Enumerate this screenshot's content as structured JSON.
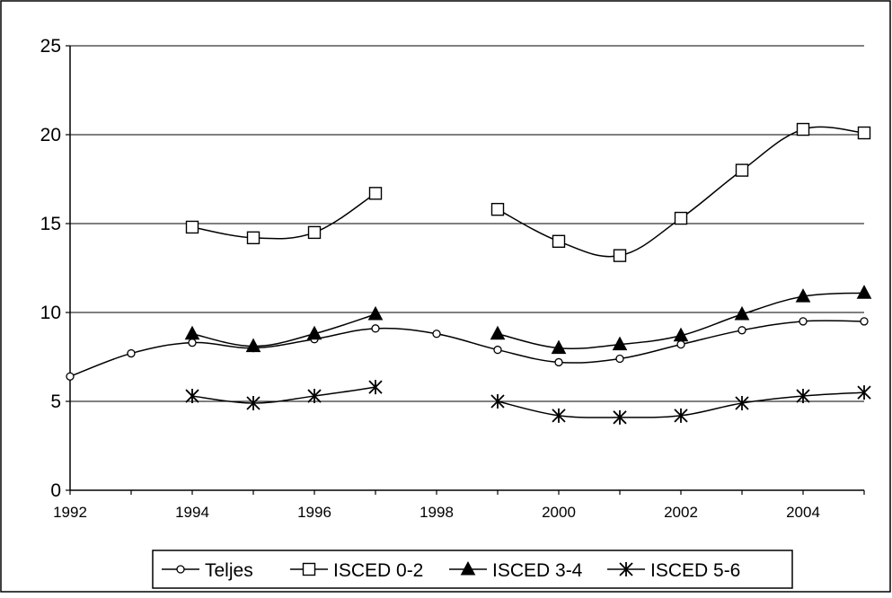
{
  "chart_data": {
    "type": "line",
    "title": "",
    "xlabel": "",
    "ylabel": "",
    "xlim": [
      1992,
      2005
    ],
    "ylim": [
      0,
      25
    ],
    "y_ticks": [
      "0",
      "5",
      "10",
      "15",
      "20",
      "25"
    ],
    "x_ticks": [
      "1992",
      "1994",
      "1996",
      "1998",
      "2000",
      "2002",
      "2004"
    ],
    "grid": "horizontal",
    "legend_position": "bottom",
    "colors": {
      "line": "#000000",
      "background": "#ffffff",
      "grid": "#000000",
      "border": "#000000"
    },
    "x": [
      1992,
      1993,
      1994,
      1995,
      1996,
      1997,
      1998,
      1999,
      2000,
      2001,
      2002,
      2003,
      2004,
      2005
    ],
    "series": [
      {
        "name": "Teljes",
        "marker": "circle",
        "values": [
          6.4,
          7.7,
          8.3,
          8.0,
          8.5,
          9.1,
          8.8,
          7.9,
          7.2,
          7.4,
          8.2,
          9.0,
          9.5,
          9.5
        ]
      },
      {
        "name": "ISCED 0-2",
        "marker": "square",
        "values": [
          null,
          null,
          14.8,
          14.2,
          14.5,
          16.7,
          null,
          15.8,
          14.0,
          13.2,
          15.3,
          18.0,
          20.3,
          20.1
        ]
      },
      {
        "name": "ISCED 3-4",
        "marker": "triangle",
        "values": [
          null,
          null,
          8.8,
          8.1,
          8.8,
          9.9,
          null,
          8.8,
          8.0,
          8.2,
          8.7,
          9.9,
          10.9,
          11.1
        ]
      },
      {
        "name": "ISCED 5-6",
        "marker": "star",
        "values": [
          null,
          null,
          5.3,
          4.9,
          5.3,
          5.8,
          null,
          5.0,
          4.2,
          4.1,
          4.2,
          4.9,
          5.3,
          5.5
        ]
      }
    ]
  }
}
